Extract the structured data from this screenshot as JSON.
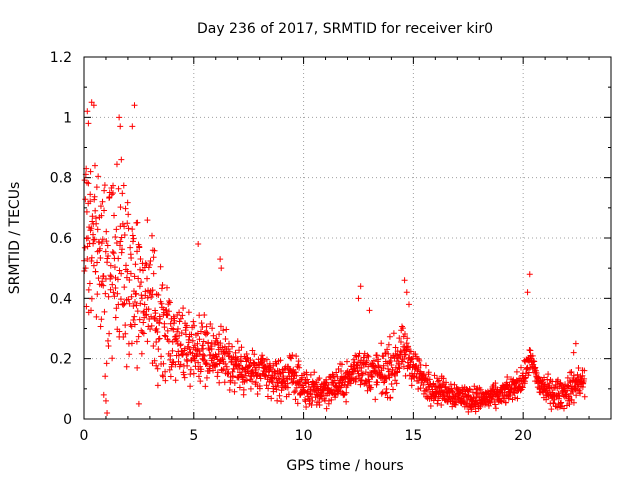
{
  "chart_data": {
    "type": "scatter",
    "title": "Day 236 of 2017, SRMTID for receiver kir0",
    "xlabel": "GPS time / hours",
    "ylabel": "SRMTID / TECUs",
    "xlim": [
      0,
      24
    ],
    "ylim": [
      0,
      1.2
    ],
    "xticks": [
      "0",
      "5",
      "10",
      "15",
      "20"
    ],
    "yticks": [
      "0",
      "0.2",
      "0.4",
      "0.6",
      "0.8",
      "1",
      "1.2"
    ],
    "grid": true,
    "marker": "+",
    "color": "#ff0000",
    "trend": [
      [
        0.0,
        0.55
      ],
      [
        0.5,
        0.58
      ],
      [
        1.0,
        0.5
      ],
      [
        1.5,
        0.52
      ],
      [
        2.0,
        0.5
      ],
      [
        2.5,
        0.45
      ],
      [
        3.0,
        0.38
      ],
      [
        3.5,
        0.3
      ],
      [
        4.0,
        0.26
      ],
      [
        4.5,
        0.25
      ],
      [
        5.0,
        0.24
      ],
      [
        5.5,
        0.23
      ],
      [
        6.0,
        0.22
      ],
      [
        6.5,
        0.19
      ],
      [
        7.0,
        0.17
      ],
      [
        7.5,
        0.16
      ],
      [
        8.0,
        0.15
      ],
      [
        8.5,
        0.14
      ],
      [
        9.0,
        0.13
      ],
      [
        9.5,
        0.15
      ],
      [
        10.0,
        0.1
      ],
      [
        10.5,
        0.09
      ],
      [
        11.0,
        0.1
      ],
      [
        11.5,
        0.11
      ],
      [
        12.0,
        0.13
      ],
      [
        12.5,
        0.18
      ],
      [
        13.0,
        0.15
      ],
      [
        13.5,
        0.15
      ],
      [
        14.0,
        0.17
      ],
      [
        14.5,
        0.22
      ],
      [
        15.0,
        0.18
      ],
      [
        15.5,
        0.12
      ],
      [
        16.0,
        0.1
      ],
      [
        16.5,
        0.09
      ],
      [
        17.0,
        0.08
      ],
      [
        17.5,
        0.07
      ],
      [
        18.0,
        0.065
      ],
      [
        18.5,
        0.07
      ],
      [
        19.0,
        0.08
      ],
      [
        19.5,
        0.1
      ],
      [
        20.0,
        0.13
      ],
      [
        20.3,
        0.2
      ],
      [
        20.7,
        0.12
      ],
      [
        21.0,
        0.1
      ],
      [
        21.5,
        0.08
      ],
      [
        22.0,
        0.09
      ],
      [
        22.5,
        0.12
      ],
      [
        22.8,
        0.12
      ]
    ],
    "spread": [
      [
        0.0,
        0.35
      ],
      [
        2.5,
        0.3
      ],
      [
        4.0,
        0.15
      ],
      [
        6.5,
        0.1
      ],
      [
        9.0,
        0.07
      ],
      [
        12.0,
        0.06
      ],
      [
        14.0,
        0.1
      ],
      [
        16.0,
        0.05
      ],
      [
        19.0,
        0.04
      ],
      [
        22.8,
        0.06
      ]
    ],
    "outliers": [
      [
        0.15,
        1.02
      ],
      [
        0.2,
        0.98
      ],
      [
        0.35,
        1.05
      ],
      [
        0.45,
        1.04
      ],
      [
        0.5,
        0.84
      ],
      [
        0.1,
        0.83
      ],
      [
        0.3,
        0.82
      ],
      [
        1.6,
        1.0
      ],
      [
        1.65,
        0.97
      ],
      [
        1.7,
        0.86
      ],
      [
        2.3,
        1.04
      ],
      [
        2.2,
        0.97
      ],
      [
        0.9,
        0.08
      ],
      [
        1.0,
        0.06
      ],
      [
        1.05,
        0.02
      ],
      [
        5.2,
        0.58
      ],
      [
        6.2,
        0.53
      ],
      [
        6.25,
        0.5
      ],
      [
        12.5,
        0.4
      ],
      [
        12.6,
        0.44
      ],
      [
        13.0,
        0.36
      ],
      [
        14.6,
        0.46
      ],
      [
        14.7,
        0.42
      ],
      [
        14.8,
        0.38
      ],
      [
        20.3,
        0.48
      ],
      [
        20.2,
        0.42
      ],
      [
        22.4,
        0.25
      ],
      [
        22.3,
        0.22
      ],
      [
        2.5,
        0.05
      ]
    ],
    "series_count": 1800
  }
}
